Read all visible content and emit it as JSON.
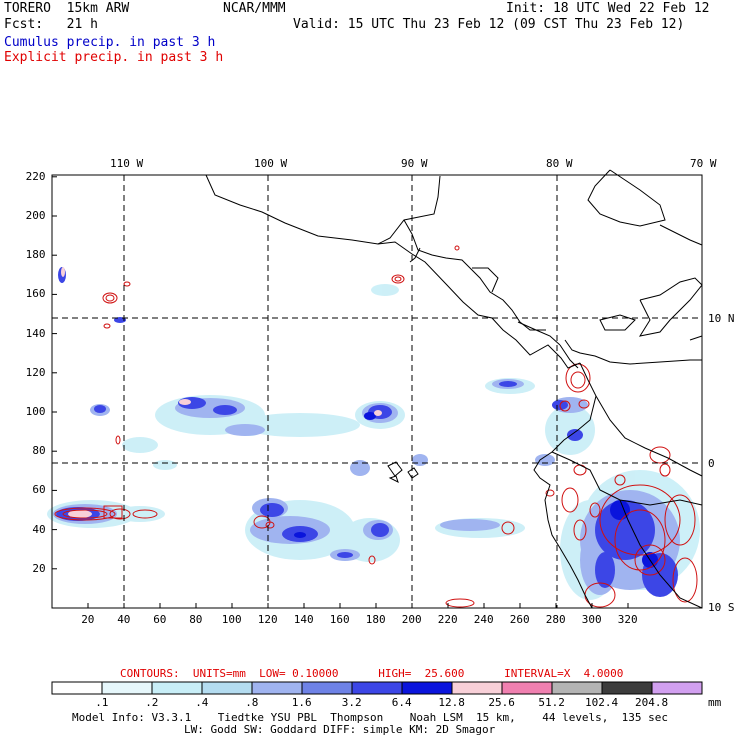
{
  "header": {
    "model": "TORERO  15km ARW",
    "center": "NCAR/MMM",
    "init": "Init: 18 UTC Wed 22 Feb 12",
    "fcst": "Fcst:   21 h",
    "valid": "Valid: 15 UTC Thu 23 Feb 12 (09 CST Thu 23 Feb 12)",
    "legend_cumulus": "Cumulus precip. in past 3 h",
    "legend_explicit": "Explicit precip. in past 3 h"
  },
  "colors": {
    "cumulus_text": "#0000c8",
    "explicit_text": "#e00000",
    "coast": "#000000",
    "explicit_contour": "#d01010"
  },
  "axes": {
    "top_lon_labels": [
      "110 W",
      "100 W",
      "90 W",
      "80 W",
      "70 W"
    ],
    "right_lat_labels": [
      "10 N",
      "0",
      "10 S"
    ],
    "x_ticks": [
      "20",
      "40",
      "60",
      "80",
      "100",
      "120",
      "140",
      "160",
      "180",
      "200",
      "220",
      "240",
      "260",
      "280",
      "300",
      "320"
    ],
    "y_ticks": [
      "20",
      "40",
      "60",
      "80",
      "100",
      "120",
      "140",
      "160",
      "180",
      "200",
      "220"
    ]
  },
  "contour_info": {
    "label": "CONTOURS:  UNITS=mm  LOW= 0.10000      HIGH=  25.600      INTERVAL=X  4.0000"
  },
  "colorbar": {
    "labels": [
      ".1",
      ".2",
      ".4",
      ".8",
      "1.6",
      "3.2",
      "6.4",
      "12.8",
      "25.6",
      "51.2",
      "102.4",
      "204.8"
    ],
    "unit": "mm",
    "colors": [
      "#ffffff",
      "#e6f7fb",
      "#c8eef7",
      "#b4dcf0",
      "#a0b4f0",
      "#6e82e6",
      "#3c46e6",
      "#0a14dc",
      "#f8d0d8",
      "#f080b0",
      "#b4b4b4",
      "#3c3c3c",
      "#d2a0f0"
    ]
  },
  "footer": {
    "line1": "Model Info: V3.3.1    Tiedtke YSU PBL  Thompson    Noah LSM  15 km,    44 levels,  135 sec",
    "line2": "LW: Godd SW: Goddard DIFF: simple KM: 2D Smagor"
  }
}
